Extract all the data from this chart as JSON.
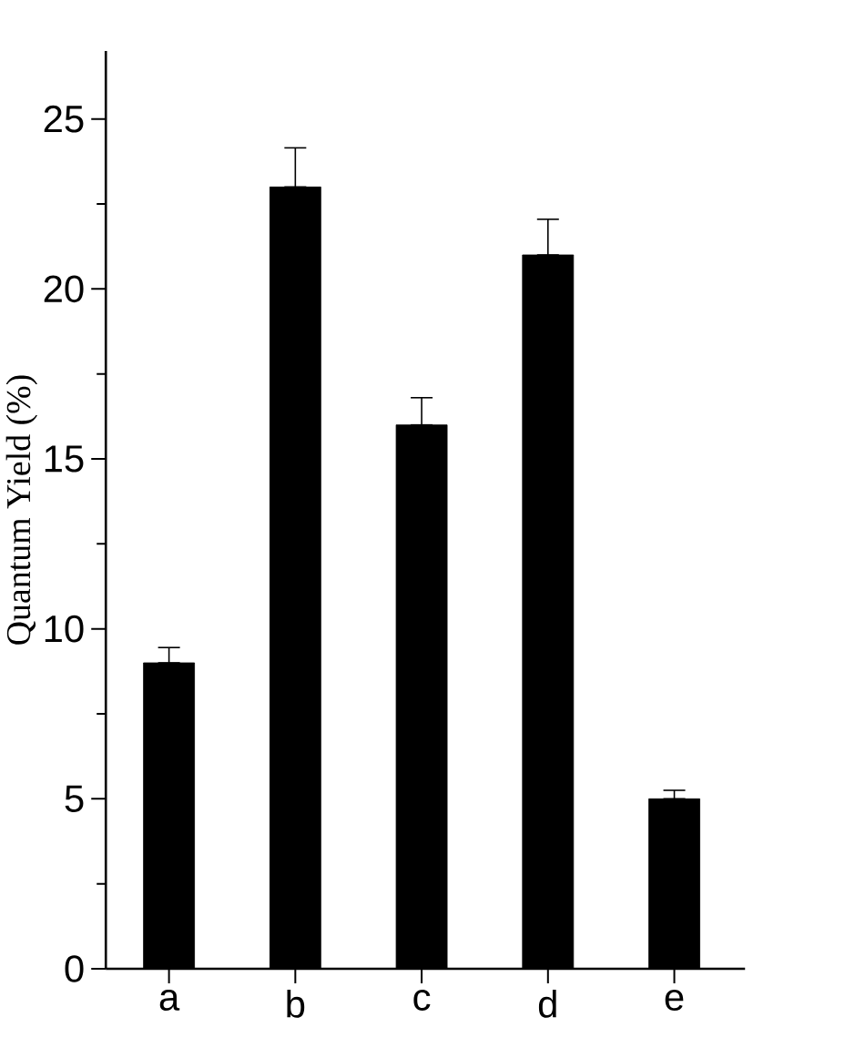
{
  "chart_data": {
    "type": "bar",
    "ylabel": "Quantum Yield (%)",
    "categories": [
      "a",
      "b",
      "c",
      "d",
      "e"
    ],
    "values": [
      9,
      23,
      16,
      21,
      5
    ],
    "errors": [
      [
        9,
        9.45
      ],
      [
        23,
        24.15
      ],
      [
        16,
        16.8
      ],
      [
        21,
        22.05
      ],
      [
        5,
        5.25
      ]
    ],
    "color": "#000000",
    "ylim": [
      0,
      27
    ],
    "yticks": [
      0,
      5,
      10,
      15,
      20,
      25
    ],
    "grid": false,
    "legend": false
  }
}
